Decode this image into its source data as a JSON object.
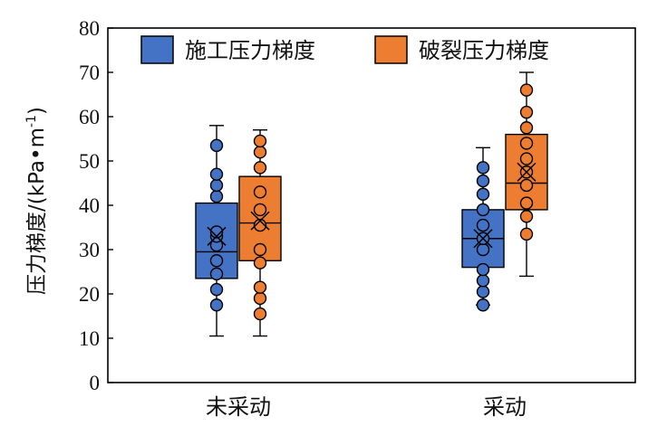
{
  "chart_data": {
    "type": "box",
    "title": "",
    "xlabel": "",
    "ylabel": "压力梯度/(kPa•m",
    "ylabel_sup": "-1",
    "ylabel_close": ")",
    "ylim": [
      0,
      80
    ],
    "yticks": [
      0,
      10,
      20,
      30,
      40,
      50,
      60,
      70,
      80
    ],
    "grid": false,
    "legend_position": "top",
    "categories": [
      "未采动",
      "采动"
    ],
    "series": [
      {
        "name": "施工压力梯度",
        "color": "#4472C4",
        "boxes": [
          {
            "category": "未采动",
            "min": 10.5,
            "q1": 23.5,
            "median": 29.5,
            "q3": 40.5,
            "max": 58,
            "mean": 33,
            "points": [
              17.5,
              21,
              24.5,
              27.5,
              31,
              33,
              34,
              42,
              44.5,
              47,
              53.5
            ]
          },
          {
            "category": "采动",
            "min": 17.5,
            "q1": 26,
            "median": 32.5,
            "q3": 39,
            "max": 53,
            "mean": 32.5,
            "points": [
              17.5,
              20.5,
              23,
              25.5,
              30,
              32.5,
              35.5,
              39,
              42.5,
              45.5,
              48.5
            ]
          }
        ]
      },
      {
        "name": "破裂压力梯度",
        "color": "#ED7D31",
        "boxes": [
          {
            "category": "未采动",
            "min": 10.5,
            "q1": 27.5,
            "median": 36,
            "q3": 46.5,
            "max": 57,
            "mean": 36.5,
            "points": [
              15.5,
              19,
              21.5,
              27,
              30,
              35.5,
              39,
              43,
              48.5,
              52,
              54.5
            ]
          },
          {
            "category": "采动",
            "min": 24,
            "q1": 39,
            "median": 45,
            "q3": 56,
            "max": 70,
            "mean": 47.5,
            "points": [
              33.5,
              37.5,
              40.5,
              44.5,
              47.5,
              50.5,
              54,
              57.5,
              61,
              66
            ]
          }
        ]
      }
    ]
  }
}
